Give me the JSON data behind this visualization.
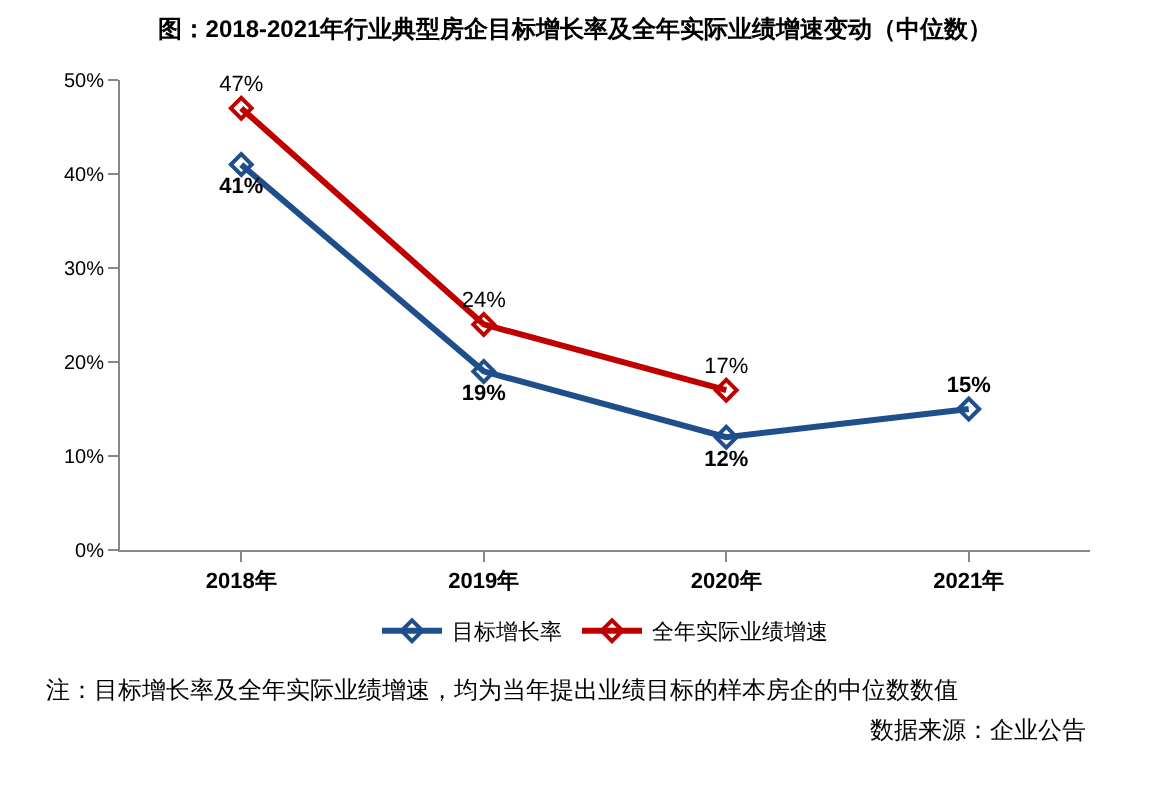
{
  "chart_data": {
    "type": "line",
    "title": "图：2018-2021年行业典型房企目标增长率及全年实际业绩增速变动（中位数）",
    "categories": [
      "2018年",
      "2019年",
      "2020年",
      "2021年"
    ],
    "series": [
      {
        "name": "目标增长率",
        "color": "#1f4e8c",
        "values": [
          41,
          19,
          12,
          15
        ],
        "value_labels": [
          "41%",
          "19%",
          "12%",
          "15%"
        ]
      },
      {
        "name": "全年实际业绩增速",
        "color": "#c00000",
        "values": [
          47,
          24,
          17,
          null
        ],
        "value_labels": [
          "47%",
          "24%",
          "17%",
          null
        ]
      }
    ],
    "ylim": [
      0,
      50
    ],
    "yticks": [
      {
        "value": 0,
        "label": "0%"
      },
      {
        "value": 10,
        "label": "10%"
      },
      {
        "value": 20,
        "label": "20%"
      },
      {
        "value": 30,
        "label": "30%"
      },
      {
        "value": 40,
        "label": "40%"
      },
      {
        "value": 50,
        "label": "50%"
      }
    ],
    "marker": "diamond",
    "line_style": "solid",
    "legend": "bottom",
    "grid": false,
    "annotations": [
      "注：目标增长率及全年实际业绩增速，均为当年提出业绩目标的样本房企的中位数数值",
      "数据来源：企业公告"
    ]
  }
}
